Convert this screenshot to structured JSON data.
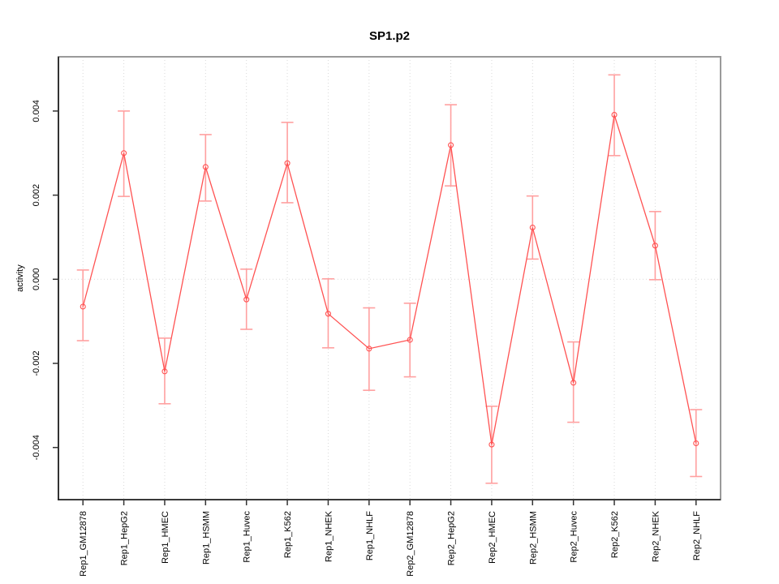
{
  "chart_data": {
    "type": "line",
    "title": "SP1.p2",
    "xlabel": "",
    "ylabel": "activity",
    "legend": "none",
    "marker": "open-circle",
    "categories": [
      "Rep1_GM12878",
      "Rep1_HepG2",
      "Rep1_HMEC",
      "Rep1_HSMM",
      "Rep1_Huvec",
      "Rep1_K562",
      "Rep1_NHEK",
      "Rep1_NHLF",
      "Rep2_GM12878",
      "Rep2_HepG2",
      "Rep2_HMEC",
      "Rep2_HSMM",
      "Rep2_Huvec",
      "Rep2_K562",
      "Rep2_NHEK",
      "Rep2_NHLF"
    ],
    "series": [
      {
        "name": "activity",
        "values": [
          -0.00065,
          0.003,
          -0.00219,
          0.00267,
          -0.00048,
          0.00276,
          -0.00082,
          -0.00165,
          -0.00144,
          0.00319,
          -0.00393,
          0.00123,
          -0.00246,
          0.00391,
          0.0008,
          -0.0039
        ],
        "error_upper": [
          0.00022,
          0.004,
          -0.0014,
          0.00344,
          0.00024,
          0.00373,
          1e-05,
          -0.00068,
          -0.00057,
          0.00415,
          -0.00302,
          0.00198,
          -0.00149,
          0.00486,
          0.00161,
          -0.0031
        ],
        "error_lower": [
          -0.00146,
          0.00197,
          -0.00296,
          0.00186,
          -0.00119,
          0.00182,
          -0.00163,
          -0.00264,
          -0.00232,
          0.00222,
          -0.00485,
          0.00048,
          -0.0034,
          0.00294,
          -1e-05,
          -0.00469
        ]
      }
    ],
    "yticks": {
      "values": [
        -0.004,
        -0.002,
        0,
        0.002,
        0.004
      ],
      "labels": [
        "-0.004",
        "-0.002",
        "0.000",
        "0.002",
        "0.004"
      ]
    },
    "ylim": [
      -0.00524,
      0.00529
    ],
    "grid": {
      "vertical_at_categories": true,
      "horizontal_at_zero": true,
      "style": "dotted"
    },
    "colors": {
      "series_line": "#ff5252",
      "marker_stroke": "#ff5252",
      "error_bar": "#ffa0a0",
      "grid": "#d9d9d9",
      "axis": "#333333",
      "box": "#9a9a9a",
      "background": "#ffffff",
      "text": "#000000"
    }
  }
}
